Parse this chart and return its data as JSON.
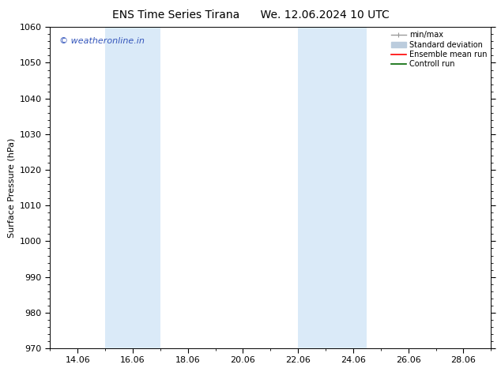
{
  "title_left": "ENS Time Series Tirana",
  "title_right": "We. 12.06.2024 10 UTC",
  "ylabel": "Surface Pressure (hPa)",
  "ylim": [
    970,
    1060
  ],
  "yticks": [
    970,
    980,
    990,
    1000,
    1010,
    1020,
    1030,
    1040,
    1050,
    1060
  ],
  "xlim": [
    13.0,
    29.0
  ],
  "xtick_labels": [
    "14.06",
    "16.06",
    "18.06",
    "20.06",
    "22.06",
    "24.06",
    "26.06",
    "28.06"
  ],
  "xtick_positions": [
    14,
    16,
    18,
    20,
    22,
    24,
    26,
    28
  ],
  "shaded_bands": [
    {
      "x_start": 15.0,
      "x_end": 17.0
    },
    {
      "x_start": 22.0,
      "x_end": 24.5
    }
  ],
  "shaded_color": "#daeaf8",
  "background_color": "#ffffff",
  "watermark_text": "© weatheronline.in",
  "watermark_color": "#3355bb",
  "legend_entries": [
    {
      "label": "min/max",
      "color": "#999999",
      "linewidth": 1.0,
      "style": "minmax"
    },
    {
      "label": "Standard deviation",
      "color": "#bbccdd",
      "linewidth": 5,
      "style": "band"
    },
    {
      "label": "Ensemble mean run",
      "color": "#ff0000",
      "linewidth": 1.2,
      "style": "line"
    },
    {
      "label": "Controll run",
      "color": "#006600",
      "linewidth": 1.2,
      "style": "line"
    }
  ],
  "title_fontsize": 10,
  "tick_fontsize": 8,
  "ylabel_fontsize": 8,
  "watermark_fontsize": 8,
  "legend_fontsize": 7
}
